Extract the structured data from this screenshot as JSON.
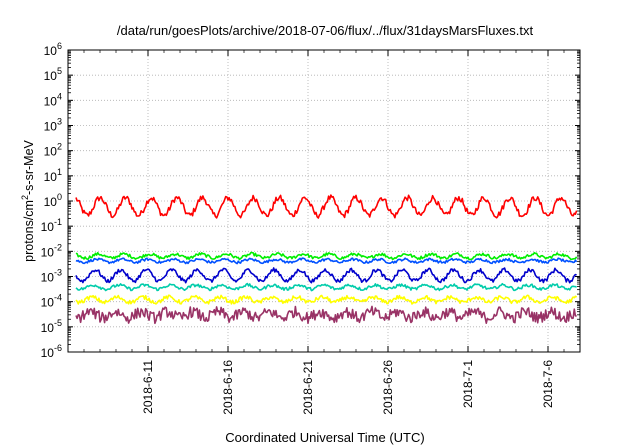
{
  "chart_data": {
    "type": "line",
    "title": "/data/run/goesPlots/archive/2018-07-06/flux/../flux/31daysMarsFluxes.txt",
    "xlabel": "Coordinated Universal Time (UTC)",
    "ylabel": {
      "prefix": "protons/cm",
      "sup": "2",
      "suffix": "-s-sr-MeV"
    },
    "yscale": "log",
    "ylim": [
      1e-06,
      1000000.0
    ],
    "y_ticks": [
      {
        "base": "10",
        "exp": "-6",
        "value": 1e-06
      },
      {
        "base": "10",
        "exp": "-5",
        "value": 1e-05
      },
      {
        "base": "10",
        "exp": "-4",
        "value": 0.0001
      },
      {
        "base": "10",
        "exp": "-3",
        "value": 0.001
      },
      {
        "base": "10",
        "exp": "-2",
        "value": 0.01
      },
      {
        "base": "10",
        "exp": "-1",
        "value": 0.1
      },
      {
        "base": "10",
        "exp": "0",
        "value": 1
      },
      {
        "base": "10",
        "exp": "1",
        "value": 10
      },
      {
        "base": "10",
        "exp": "2",
        "value": 100
      },
      {
        "base": "10",
        "exp": "3",
        "value": 1000
      },
      {
        "base": "10",
        "exp": "4",
        "value": 10000
      },
      {
        "base": "10",
        "exp": "5",
        "value": 100000
      },
      {
        "base": "10",
        "exp": "6",
        "value": 1000000
      }
    ],
    "xlim": [
      "2018-06-06",
      "2018-07-08"
    ],
    "x_ticks": [
      "2018-6-11",
      "2018-6-16",
      "2018-6-21",
      "2018-6-26",
      "2018-7-1",
      "2018-7-6"
    ],
    "grid": true,
    "series": [
      {
        "color": "#ff0000",
        "base": 0.6,
        "amp_dec": 0.35,
        "period_days": 1.6,
        "noise_dec": 0.12
      },
      {
        "color": "#00ee00",
        "base": 0.0065,
        "amp_dec": 0.08,
        "period_days": 1.6,
        "noise_dec": 0.06
      },
      {
        "color": "#0050ff",
        "base": 0.0042,
        "amp_dec": 0.06,
        "period_days": 1.6,
        "noise_dec": 0.05
      },
      {
        "color": "#0000cc",
        "base": 0.0011,
        "amp_dec": 0.22,
        "period_days": 1.6,
        "noise_dec": 0.08
      },
      {
        "color": "#00ccaa",
        "base": 0.00038,
        "amp_dec": 0.08,
        "period_days": 1.6,
        "noise_dec": 0.06
      },
      {
        "color": "#ffff00",
        "base": 0.00012,
        "amp_dec": 0.1,
        "period_days": 1.6,
        "noise_dec": 0.08
      },
      {
        "color": "#993366",
        "base": 3e-05,
        "amp_dec": 0.12,
        "period_days": 1.6,
        "noise_dec": 0.22
      }
    ]
  }
}
